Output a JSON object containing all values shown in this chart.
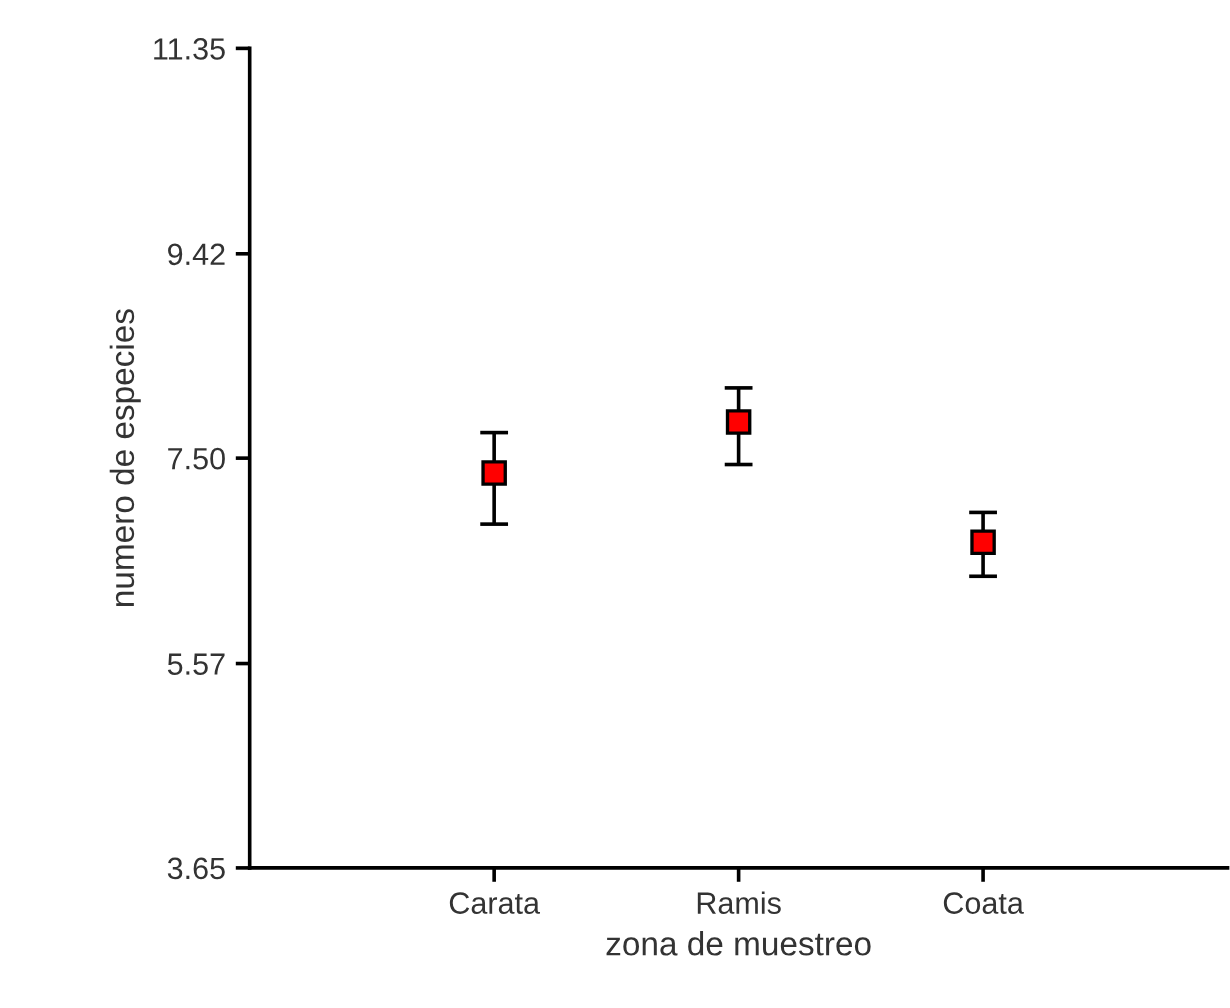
{
  "chart_data": {
    "type": "scatter",
    "xlabel": "zona de muestreo",
    "ylabel": "numero de especies",
    "categories": [
      "Carata",
      "Ramis",
      "Coata"
    ],
    "series": [
      {
        "color": "#ff0000",
        "values": [
          7.36,
          7.84,
          6.71
        ],
        "errors": [
          [
            6.88,
            7.74
          ],
          [
            7.44,
            8.16
          ],
          [
            6.39,
            6.99
          ]
        ]
      }
    ],
    "ylim": [
      3.65,
      11.35
    ],
    "yticks": [
      3.65,
      5.57,
      {
        "value": 7.5,
        "label": "7.50"
      },
      9.42,
      11.35
    ],
    "marker": "square",
    "grid": false,
    "legend": false
  }
}
